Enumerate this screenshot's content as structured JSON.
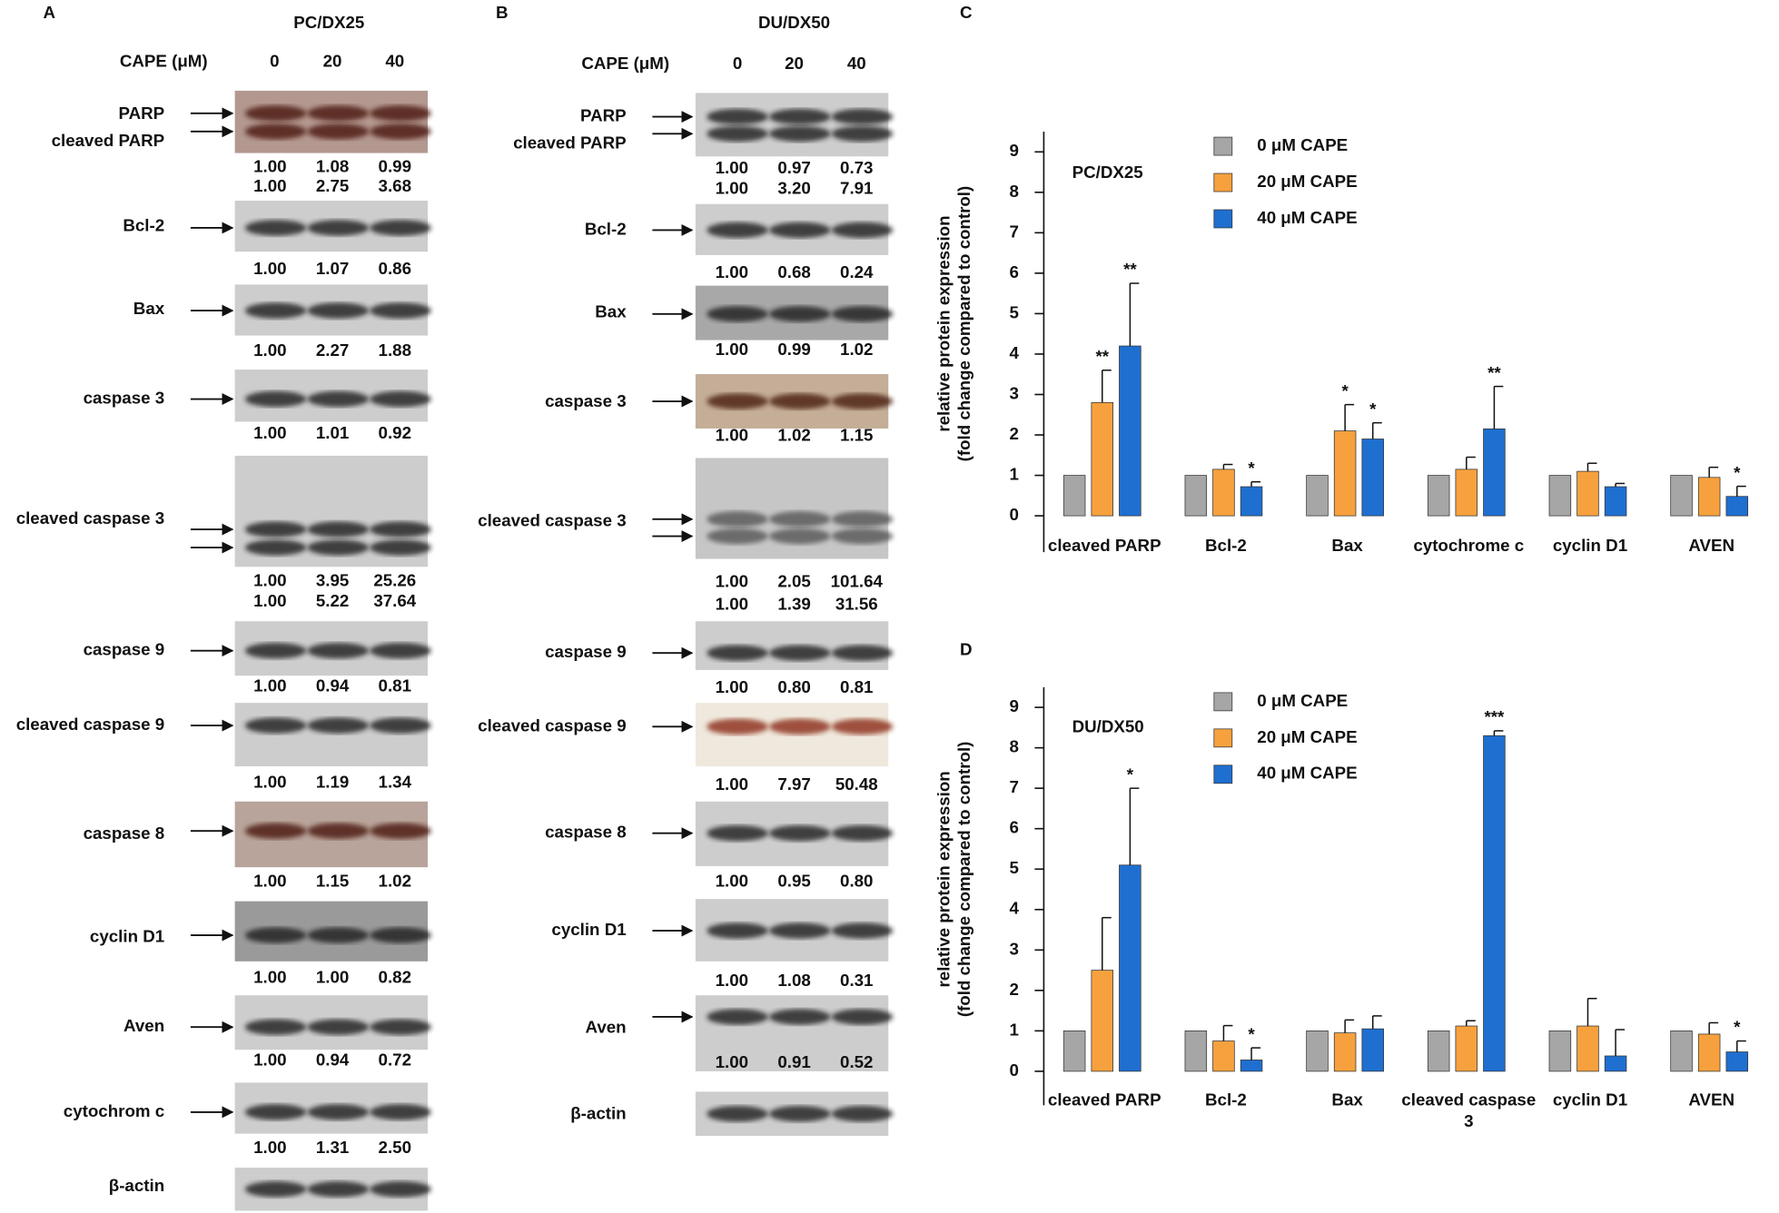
{
  "blots": [
    {
      "label": "A",
      "title": "PC/DX25",
      "dose_label": "CAPE (μM)",
      "doses": [
        "0",
        "20",
        "40"
      ],
      "rows": [
        {
          "labels": [
            "PARP",
            "cleaved PARP"
          ],
          "quant": [
            [
              "1.00",
              "1.08",
              "0.99"
            ],
            [
              "1.00",
              "2.75",
              "3.68"
            ]
          ]
        },
        {
          "labels": [
            "Bcl-2"
          ],
          "quant": [
            [
              "1.00",
              "1.07",
              "0.86"
            ]
          ]
        },
        {
          "labels": [
            "Bax"
          ],
          "quant": [
            [
              "1.00",
              "2.27",
              "1.88"
            ]
          ]
        },
        {
          "labels": [
            "caspase 3"
          ],
          "quant": [
            [
              "1.00",
              "1.01",
              "0.92"
            ]
          ]
        },
        {
          "labels": [
            "cleaved caspase 3"
          ],
          "quant": [
            [
              "1.00",
              "3.95",
              "25.26"
            ],
            [
              "1.00",
              "5.22",
              "37.64"
            ]
          ]
        },
        {
          "labels": [
            "caspase 9"
          ],
          "quant": [
            [
              "1.00",
              "0.94",
              "0.81"
            ]
          ]
        },
        {
          "labels": [
            "cleaved caspase 9"
          ],
          "quant": [
            [
              "1.00",
              "1.19",
              "1.34"
            ]
          ]
        },
        {
          "labels": [
            "caspase 8"
          ],
          "quant": [
            [
              "1.00",
              "1.15",
              "1.02"
            ]
          ]
        },
        {
          "labels": [
            "cyclin D1"
          ],
          "quant": [
            [
              "1.00",
              "1.00",
              "0.82"
            ]
          ]
        },
        {
          "labels": [
            "Aven"
          ],
          "quant": [
            [
              "1.00",
              "0.94",
              "0.72"
            ]
          ]
        },
        {
          "labels": [
            "cytochrom c"
          ],
          "quant": [
            [
              "1.00",
              "1.31",
              "2.50"
            ]
          ]
        },
        {
          "labels": [
            "β-actin"
          ]
        }
      ]
    },
    {
      "label": "B",
      "title": "DU/DX50",
      "dose_label": "CAPE (μM)",
      "doses": [
        "0",
        "20",
        "40"
      ],
      "rows": [
        {
          "labels": [
            "PARP",
            "cleaved PARP"
          ],
          "quant": [
            [
              "1.00",
              "0.97",
              "0.73"
            ],
            [
              "1.00",
              "3.20",
              "7.91"
            ]
          ]
        },
        {
          "labels": [
            "Bcl-2"
          ],
          "quant": [
            [
              "1.00",
              "0.68",
              "0.24"
            ]
          ]
        },
        {
          "labels": [
            "Bax"
          ],
          "quant": [
            [
              "1.00",
              "0.99",
              "1.02"
            ]
          ]
        },
        {
          "labels": [
            "caspase 3"
          ],
          "quant": [
            [
              "1.00",
              "1.02",
              "1.15"
            ]
          ]
        },
        {
          "labels": [
            "cleaved caspase 3"
          ],
          "quant": [
            [
              "1.00",
              "2.05",
              "101.64"
            ],
            [
              "1.00",
              "1.39",
              "31.56"
            ]
          ]
        },
        {
          "labels": [
            "caspase 9"
          ],
          "quant": [
            [
              "1.00",
              "0.80",
              "0.81"
            ]
          ]
        },
        {
          "labels": [
            "cleaved caspase 9"
          ],
          "quant": [
            [
              "1.00",
              "7.97",
              "50.48"
            ]
          ]
        },
        {
          "labels": [
            "caspase 8"
          ],
          "quant": [
            [
              "1.00",
              "0.95",
              "0.80"
            ]
          ]
        },
        {
          "labels": [
            "cyclin D1"
          ],
          "quant": [
            [
              "1.00",
              "1.08",
              "0.31"
            ]
          ]
        },
        {
          "labels": [
            "Aven"
          ],
          "quant": [
            [
              "1.00",
              "0.91",
              "0.52"
            ]
          ]
        },
        {
          "labels": [
            "β-actin"
          ]
        }
      ]
    }
  ],
  "chart_data": [
    {
      "type": "bar",
      "label": "C",
      "inset_label": "PC/DX25",
      "y_label": [
        "relative protein expression",
        "(fold change compared to control)"
      ],
      "categories": [
        "cleaved PARP",
        "Bcl-2",
        "Bax",
        "cytochrome c",
        "cyclin D1",
        "AVEN"
      ],
      "ylim": [
        0,
        9.5
      ],
      "yticks": [
        0,
        1,
        2,
        3,
        4,
        5,
        6,
        7,
        8,
        9
      ],
      "series": [
        {
          "name": "0 μM CAPE",
          "color": "#a6a6a6",
          "values": [
            1,
            1,
            1,
            1,
            1,
            1
          ]
        },
        {
          "name": "20 μM CAPE",
          "color": "#f7a13e",
          "values": [
            2.8,
            1.15,
            2.1,
            1.15,
            1.1,
            0.95
          ],
          "errors": [
            0.8,
            0.12,
            0.65,
            0.3,
            0.2,
            0.25
          ],
          "significance": [
            "**",
            null,
            "*",
            null,
            null,
            null
          ]
        },
        {
          "name": "40 μM CAPE",
          "color": "#1f6fd1",
          "values": [
            4.2,
            0.72,
            1.9,
            2.15,
            0.72,
            0.48
          ],
          "errors": [
            1.55,
            0.12,
            0.4,
            1.05,
            0.08,
            0.25
          ],
          "significance": [
            "**",
            "*",
            "*",
            "**",
            null,
            "*"
          ]
        }
      ]
    },
    {
      "type": "bar",
      "label": "D",
      "inset_label": "DU/DX50",
      "y_label": [
        "relative protein expression",
        "(fold change compared to control)"
      ],
      "categories": [
        "cleaved PARP",
        "Bcl-2",
        "Bax",
        "cleaved caspase 3",
        "cyclin D1",
        "AVEN"
      ],
      "ylim": [
        0,
        9.5
      ],
      "yticks": [
        0,
        1,
        2,
        3,
        4,
        5,
        6,
        7,
        8,
        9
      ],
      "series": [
        {
          "name": "0 μM CAPE",
          "color": "#a6a6a6",
          "values": [
            1,
            1,
            1,
            1,
            1,
            1
          ]
        },
        {
          "name": "20 μM CAPE",
          "color": "#f7a13e",
          "values": [
            2.5,
            0.75,
            0.95,
            1.12,
            1.12,
            0.92
          ],
          "errors": [
            1.3,
            0.38,
            0.32,
            0.13,
            0.68,
            0.28
          ]
        },
        {
          "name": "40 μM CAPE",
          "color": "#1f6fd1",
          "values": [
            5.1,
            0.28,
            1.05,
            8.3,
            0.38,
            0.48
          ],
          "errors": [
            1.9,
            0.3,
            0.32,
            0.12,
            0.65,
            0.27
          ],
          "significance": [
            "*",
            "*",
            null,
            "***",
            null,
            "*"
          ]
        }
      ]
    }
  ]
}
